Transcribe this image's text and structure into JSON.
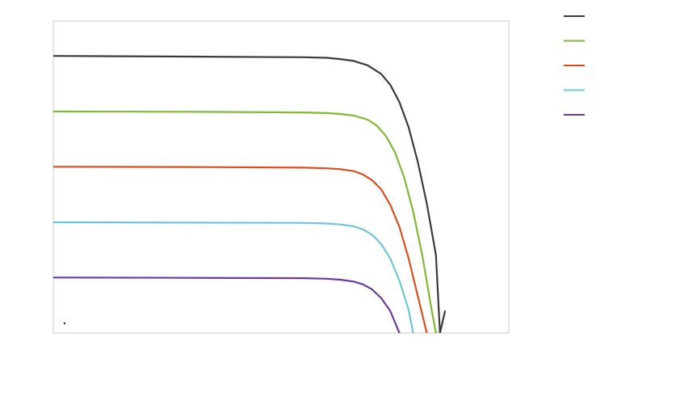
{
  "chart_data": {
    "type": "line",
    "title": "",
    "xlabel": "",
    "ylabel": "",
    "xlim": [
      0,
      1
    ],
    "ylim": [
      0,
      1
    ],
    "grid": false,
    "legend_position": "top-right",
    "legend_labels_visible": false,
    "series": [
      {
        "color": "#3a3a3a",
        "points": [
          [
            0,
            0.888
          ],
          [
            0.3,
            0.886
          ],
          [
            0.55,
            0.884
          ],
          [
            0.6,
            0.882
          ],
          [
            0.63,
            0.878
          ],
          [
            0.66,
            0.872
          ],
          [
            0.69,
            0.858
          ],
          [
            0.72,
            0.83
          ],
          [
            0.74,
            0.795
          ],
          [
            0.76,
            0.74
          ],
          [
            0.78,
            0.66
          ],
          [
            0.8,
            0.55
          ],
          [
            0.82,
            0.415
          ],
          [
            0.84,
            0.25
          ],
          [
            0.86,
            0.07
          ],
          [
            0.849,
            0.0
          ]
        ]
      },
      {
        "color": "#80b835",
        "points": [
          [
            0,
            0.71
          ],
          [
            0.3,
            0.709
          ],
          [
            0.55,
            0.707
          ],
          [
            0.6,
            0.705
          ],
          [
            0.63,
            0.702
          ],
          [
            0.66,
            0.697
          ],
          [
            0.69,
            0.684
          ],
          [
            0.71,
            0.665
          ],
          [
            0.73,
            0.632
          ],
          [
            0.75,
            0.58
          ],
          [
            0.77,
            0.5
          ],
          [
            0.79,
            0.39
          ],
          [
            0.81,
            0.25
          ],
          [
            0.83,
            0.08
          ],
          [
            0.84,
            0.0
          ]
        ]
      },
      {
        "color": "#dc4f1c",
        "points": [
          [
            0,
            0.533
          ],
          [
            0.3,
            0.532
          ],
          [
            0.55,
            0.53
          ],
          [
            0.6,
            0.528
          ],
          [
            0.63,
            0.525
          ],
          [
            0.66,
            0.519
          ],
          [
            0.68,
            0.508
          ],
          [
            0.7,
            0.49
          ],
          [
            0.72,
            0.46
          ],
          [
            0.74,
            0.41
          ],
          [
            0.76,
            0.34
          ],
          [
            0.78,
            0.24
          ],
          [
            0.8,
            0.12
          ],
          [
            0.82,
            0.0
          ]
        ]
      },
      {
        "color": "#6cc6d8",
        "points": [
          [
            0,
            0.355
          ],
          [
            0.3,
            0.354
          ],
          [
            0.55,
            0.353
          ],
          [
            0.6,
            0.351
          ],
          [
            0.63,
            0.348
          ],
          [
            0.66,
            0.342
          ],
          [
            0.68,
            0.332
          ],
          [
            0.7,
            0.315
          ],
          [
            0.72,
            0.285
          ],
          [
            0.74,
            0.238
          ],
          [
            0.76,
            0.168
          ],
          [
            0.78,
            0.075
          ],
          [
            0.79,
            0.0
          ]
        ]
      },
      {
        "color": "#6c3a9c",
        "points": [
          [
            0,
            0.178
          ],
          [
            0.3,
            0.177
          ],
          [
            0.55,
            0.176
          ],
          [
            0.6,
            0.174
          ],
          [
            0.63,
            0.171
          ],
          [
            0.66,
            0.165
          ],
          [
            0.68,
            0.156
          ],
          [
            0.7,
            0.14
          ],
          [
            0.72,
            0.112
          ],
          [
            0.74,
            0.07
          ],
          [
            0.76,
            0.0
          ]
        ]
      }
    ]
  }
}
